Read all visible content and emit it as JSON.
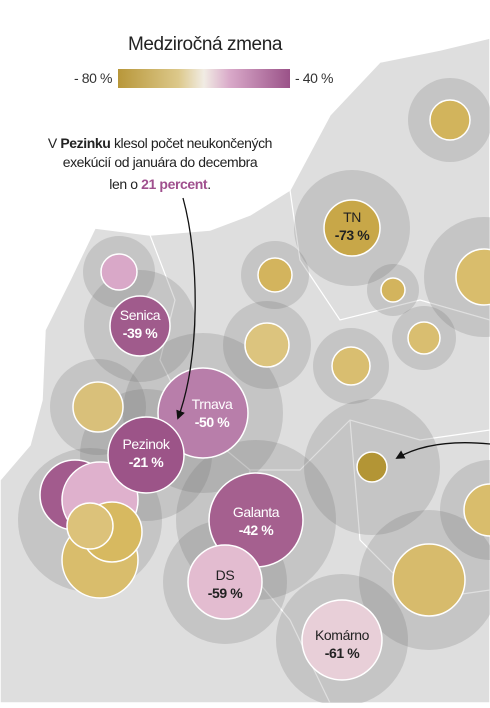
{
  "legend": {
    "title": "Medziročná zmena",
    "min_label": "- 80 %",
    "max_label": "- 40 %"
  },
  "annotation": {
    "lines": [
      [
        "V ",
        "Pezinku",
        " klesol počet neukončených"
      ],
      [
        "exekúcií od januára do decembra"
      ],
      [
        "len o ",
        "21 percent",
        "."
      ]
    ]
  },
  "bubbles": [
    {
      "name": "TN",
      "value_label": "-73 %"
    },
    {
      "name": "Senica",
      "value_label": "-39 %"
    },
    {
      "name": "Trnava",
      "value_label": "-50 %"
    },
    {
      "name": "Pezinok",
      "value_label": "-21 %"
    },
    {
      "name": "Galanta",
      "value_label": "-42 %"
    },
    {
      "name": "DS",
      "value_label": "-59 %"
    },
    {
      "name": "Komárno",
      "value_label": "-61 %"
    }
  ]
}
